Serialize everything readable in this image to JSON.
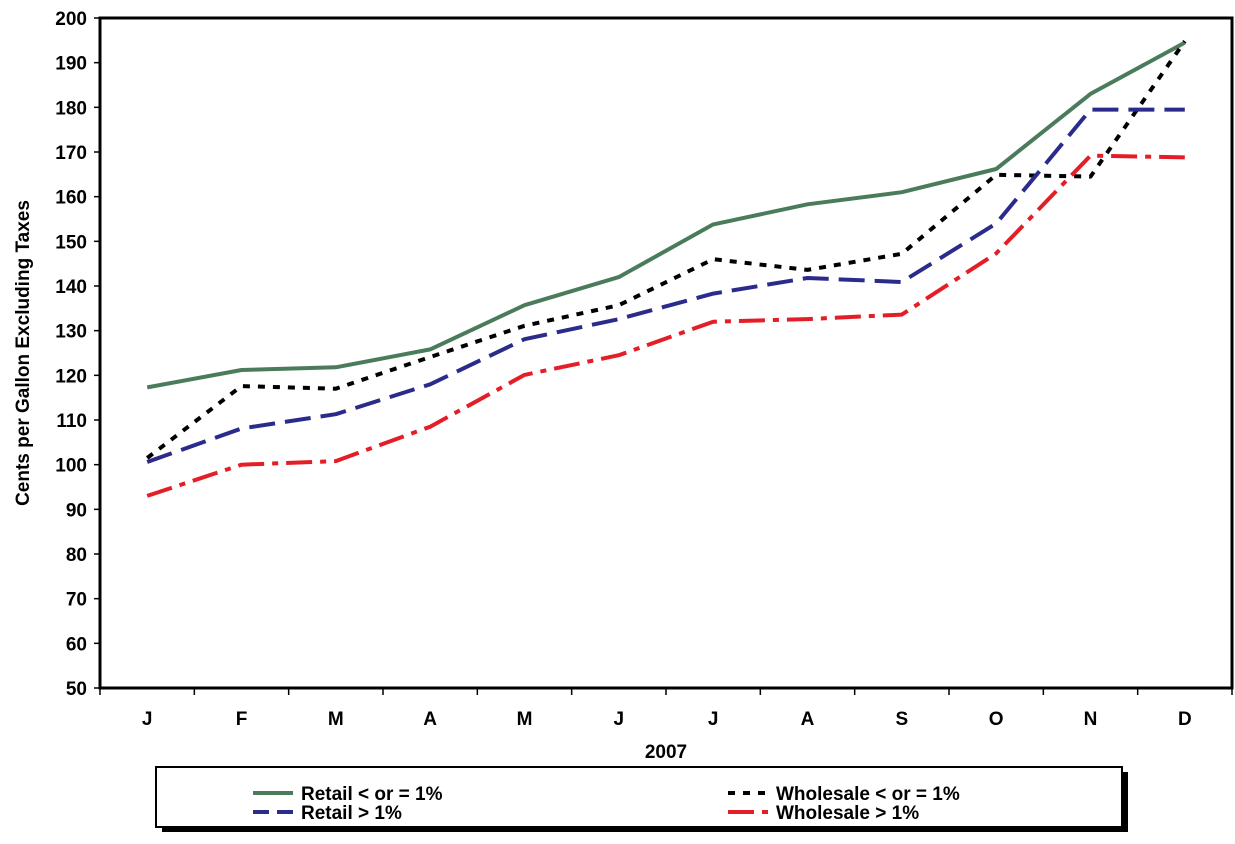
{
  "chart_data": {
    "type": "line",
    "title": "",
    "xlabel": "2007",
    "ylabel": "Cents per Gallon Excluding Taxes",
    "ylim": [
      50,
      200
    ],
    "y_ticks": [
      50,
      60,
      70,
      80,
      90,
      100,
      110,
      120,
      130,
      140,
      150,
      160,
      170,
      180,
      190,
      200
    ],
    "categories": [
      "J",
      "F",
      "M",
      "A",
      "M",
      "J",
      "J",
      "A",
      "S",
      "O",
      "N",
      "D"
    ],
    "grid": false,
    "legend_position": "bottom",
    "series": [
      {
        "name": "Retail < or = 1%",
        "color": "#4a7c5c",
        "dash": "solid",
        "values": [
          117.3,
          121.2,
          121.8,
          125.8,
          135.7,
          142.0,
          153.8,
          158.3,
          161.0,
          166.2,
          183.0,
          194.5
        ]
      },
      {
        "name": "Wholesale < or = 1%",
        "color": "#000000",
        "dash": "dot",
        "values": [
          101.5,
          117.6,
          117.0,
          124.1,
          131.1,
          135.7,
          146.0,
          143.6,
          147.2,
          164.9,
          164.5,
          194.8
        ]
      },
      {
        "name": "Retail > 1%",
        "color": "#2b2b8c",
        "dash": "dash",
        "values": [
          100.6,
          108.1,
          111.3,
          118.0,
          128.1,
          132.6,
          138.3,
          141.8,
          140.9,
          154.0,
          179.5,
          179.5
        ]
      },
      {
        "name": "Wholesale > 1%",
        "color": "#e41e26",
        "dash": "dashdot",
        "values": [
          93.0,
          100.0,
          100.8,
          108.5,
          120.1,
          124.5,
          132.0,
          132.6,
          133.6,
          147.3,
          169.2,
          168.8
        ]
      }
    ]
  }
}
